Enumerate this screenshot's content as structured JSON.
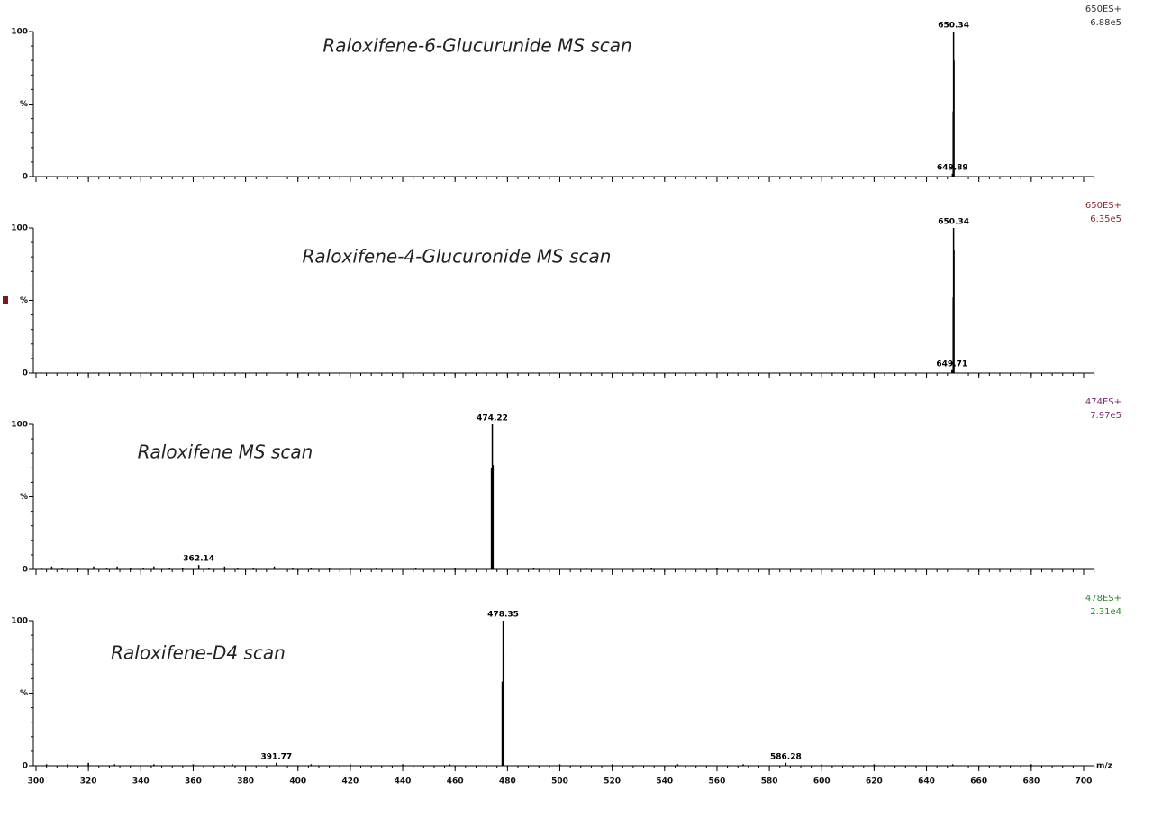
{
  "chart_data": [
    {
      "type": "spectrum",
      "title": "Raloxifene-6-Glucurunide MS scan",
      "scan_function": "650ES+",
      "intensity": "6.88e5",
      "label_color": "#333333",
      "color": "#000000",
      "xlim": [
        300,
        700
      ],
      "xticks": [
        300,
        320,
        340,
        360,
        380,
        400,
        420,
        440,
        460,
        480,
        500,
        520,
        540,
        560,
        580,
        600,
        620,
        640,
        660,
        680,
        700
      ],
      "ylim": [
        0,
        100
      ],
      "yticks": [
        0,
        {
          "value": 50,
          "label": "%"
        },
        100
      ],
      "x": [
        649.89,
        650.2,
        650.34,
        650.5
      ],
      "values": [
        2,
        45,
        100,
        80
      ],
      "annotations": [
        {
          "x": 650.34,
          "y": 100
        },
        {
          "x": 649.89,
          "y": 2
        }
      ]
    },
    {
      "type": "spectrum",
      "title": "Raloxifene-4-Glucuronide MS scan",
      "scan_function": "650ES+",
      "intensity": "6.35e5",
      "label_color": "#8b2a2a",
      "color": "#000000",
      "xlim": [
        300,
        700
      ],
      "xticks": [
        300,
        320,
        340,
        360,
        380,
        400,
        420,
        440,
        460,
        480,
        500,
        520,
        540,
        560,
        580,
        600,
        620,
        640,
        660,
        680,
        700
      ],
      "ylim": [
        0,
        100
      ],
      "yticks": [
        0,
        {
          "value": 50,
          "label": "%"
        },
        100
      ],
      "x": [
        649.71,
        650.2,
        650.34,
        650.5
      ],
      "values": [
        2,
        52,
        100,
        85
      ],
      "annotations": [
        {
          "x": 650.34,
          "y": 100
        },
        {
          "x": 649.71,
          "y": 2
        }
      ]
    },
    {
      "type": "spectrum",
      "title": "Raloxifene MS scan",
      "scan_function": "474ES+",
      "intensity": "7.97e5",
      "label_color": "#7a2a7a",
      "color": "#000000",
      "xlim": [
        300,
        700
      ],
      "xticks": [
        300,
        320,
        340,
        360,
        380,
        400,
        420,
        440,
        460,
        480,
        500,
        520,
        540,
        560,
        580,
        600,
        620,
        640,
        660,
        680,
        700
      ],
      "ylim": [
        0,
        100
      ],
      "yticks": [
        0,
        {
          "value": 50,
          "label": "%"
        },
        100
      ],
      "x": [
        302,
        306,
        310,
        316,
        322,
        327,
        331,
        336,
        341,
        345,
        351,
        356,
        362.14,
        366,
        372,
        377,
        383,
        391,
        398,
        405,
        412,
        420,
        430,
        445,
        460,
        473.9,
        474.22,
        474.5,
        490,
        510,
        535,
        560
      ],
      "values": [
        1,
        2,
        1,
        1,
        2,
        1,
        2,
        1,
        1,
        2,
        1,
        1,
        3,
        1,
        2,
        1,
        1,
        2,
        1,
        1,
        1,
        1,
        1,
        1,
        1,
        70,
        100,
        72,
        1,
        1,
        1,
        1
      ],
      "annotations": [
        {
          "x": 474.22,
          "y": 100
        },
        {
          "x": 362.14,
          "y": 3
        }
      ]
    },
    {
      "type": "spectrum",
      "title": "Raloxifene-D4 scan",
      "scan_function": "478ES+",
      "intensity": "2.31e4",
      "label_color": "#2a8a2a",
      "color": "#000000",
      "xlim": [
        300,
        700
      ],
      "xticks": [
        300,
        320,
        340,
        360,
        380,
        400,
        420,
        440,
        460,
        480,
        500,
        520,
        540,
        560,
        580,
        600,
        620,
        640,
        660,
        680,
        700
      ],
      "ylim": [
        0,
        100
      ],
      "yticks": [
        0,
        {
          "value": 50,
          "label": "%"
        },
        100
      ],
      "xlabel": "m/z",
      "x": [
        304,
        312,
        320,
        330,
        345,
        360,
        375,
        391.77,
        405,
        420,
        440,
        458,
        478.0,
        478.35,
        478.6,
        500,
        520,
        545,
        570,
        586.28,
        600,
        620,
        650,
        680
      ],
      "values": [
        1,
        1,
        2,
        1,
        1,
        1,
        1,
        2,
        1,
        1,
        1,
        1,
        58,
        100,
        78,
        1,
        1,
        1,
        1,
        2,
        1,
        1,
        1,
        1
      ],
      "annotations": [
        {
          "x": 478.35,
          "y": 100
        },
        {
          "x": 391.77,
          "y": 2
        },
        {
          "x": 586.28,
          "y": 2
        }
      ]
    }
  ]
}
